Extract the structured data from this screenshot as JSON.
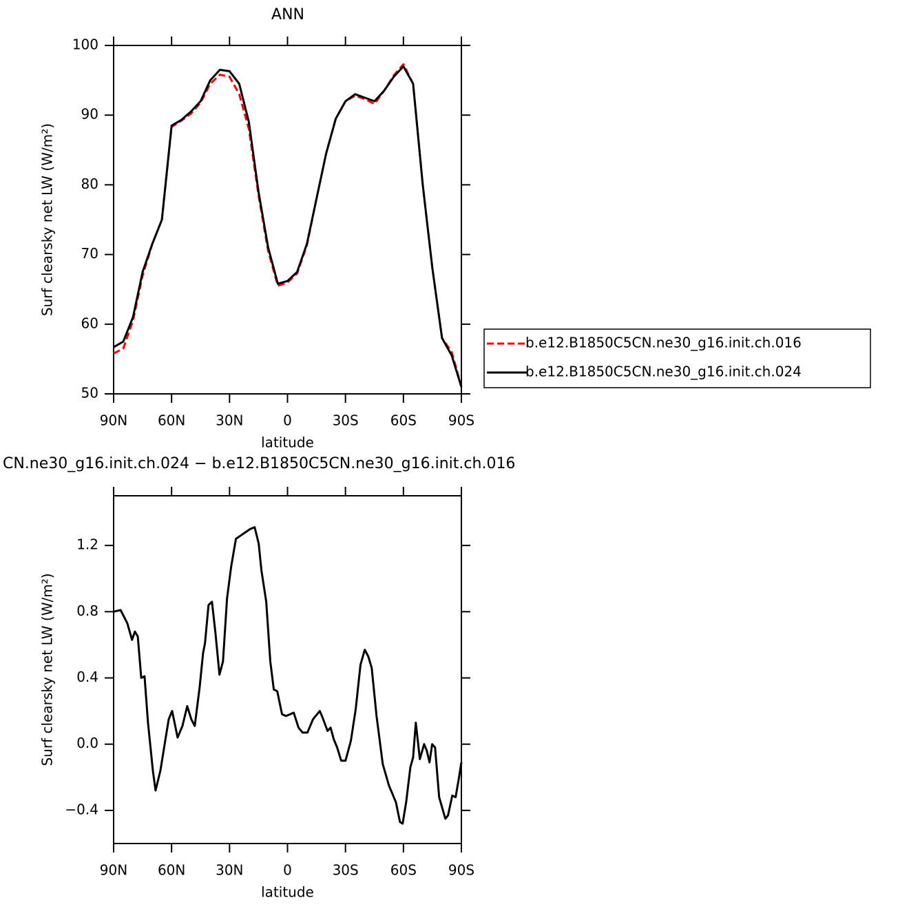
{
  "chart_data": [
    {
      "type": "line",
      "title": "ANN",
      "ylabel": "Surf clearsky net LW (W/m²)",
      "xlabel": "latitude",
      "x": [
        90,
        85,
        80,
        75,
        70,
        65,
        60,
        55,
        50,
        45,
        40,
        35,
        30,
        25,
        20,
        15,
        10,
        5,
        0,
        -5,
        -10,
        -15,
        -20,
        -25,
        -30,
        -35,
        -40,
        -45,
        -50,
        -55,
        -60,
        -65,
        -70,
        -75,
        -80,
        -85,
        -90
      ],
      "series": [
        {
          "name": "b.e12.B1850C5CN.ne30_g16.init.ch.016",
          "color": "#ff0000",
          "line_style": "dashed",
          "values": [
            55.8,
            56.5,
            60.5,
            67,
            71.5,
            75,
            88.3,
            89.2,
            90.2,
            91.8,
            94.5,
            95.8,
            95.5,
            93,
            88,
            78.5,
            70.5,
            65.5,
            66,
            67.3,
            71.3,
            78,
            84.5,
            89.5,
            92,
            92.8,
            92.3,
            91.6,
            93.5,
            95.7,
            97.3,
            94.5,
            80,
            68,
            58,
            56,
            51
          ]
        },
        {
          "name": "b.e12.B1850C5CN.ne30_g16.init.ch.024",
          "color": "#000000",
          "line_style": "solid",
          "values": [
            56.7,
            57.5,
            61,
            67.5,
            71.5,
            75,
            88.5,
            89.3,
            90.5,
            92,
            95,
            96.5,
            96.3,
            94.5,
            89,
            79,
            71,
            65.8,
            66.2,
            67.5,
            71.5,
            78,
            84.5,
            89.5,
            92,
            93,
            92.5,
            92,
            93.5,
            95.5,
            97,
            94.5,
            80,
            68,
            58,
            55.5,
            51
          ]
        }
      ],
      "xlim": [
        90,
        -90
      ],
      "xticks": [
        {
          "value": 90,
          "label": "90N"
        },
        {
          "value": 60,
          "label": "60N"
        },
        {
          "value": 30,
          "label": "30N"
        },
        0,
        {
          "value": -30,
          "label": "30S"
        },
        {
          "value": -60,
          "label": "60S"
        },
        {
          "value": -90,
          "label": "90S"
        }
      ],
      "ylim": [
        50,
        100
      ],
      "yticks": [
        50,
        60,
        70,
        80,
        90,
        100
      ],
      "grid": false,
      "legend": "outside-right"
    },
    {
      "type": "line",
      "title": "CN.ne30_g16.init.ch.024 − b.e12.B1850C5CN.ne30_g16.init.ch.016",
      "ylabel": "Surf clearsky net LW (W/m²)",
      "xlabel": "latitude",
      "x": [
        90,
        86.4,
        82.9,
        80.5,
        79,
        77.5,
        75.7,
        74,
        72.2,
        69.7,
        68.3,
        65.8,
        63.3,
        61.5,
        59.7,
        56.9,
        54.4,
        51.9,
        49.8,
        48,
        45.5,
        43.7,
        42.7,
        40.9,
        39.1,
        37.3,
        35.2,
        33.4,
        31.3,
        29.2,
        26.7,
        24.2,
        21.7,
        19.2,
        17,
        14.9,
        13.5,
        11,
        8.9,
        7.1,
        5.3,
        2.8,
        0.7,
        -3.2,
        -5.7,
        -7.8,
        -10.3,
        -13.2,
        -16.7,
        -18.5,
        -20.7,
        -22.3,
        -23.9,
        -25.7,
        -27.8,
        -30,
        -32.8,
        -35.3,
        -37.8,
        -40,
        -41.8,
        -43.6,
        -46.1,
        -49.3,
        -52.5,
        -56.1,
        -58.2,
        -59.6,
        -61.4,
        -63.6,
        -65,
        -66.4,
        -68.5,
        -70.7,
        -72.1,
        -73.5,
        -74.9,
        -76.4,
        -78.5,
        -81.7,
        -83.1,
        -85.3,
        -87,
        -88.5,
        -90
      ],
      "color": "#000000",
      "values": [
        0.8,
        0.81,
        0.73,
        0.63,
        0.68,
        0.65,
        0.4,
        0.41,
        0.13,
        -0.16,
        -0.28,
        -0.16,
        0.02,
        0.15,
        0.2,
        0.04,
        0.11,
        0.23,
        0.15,
        0.11,
        0.34,
        0.55,
        0.61,
        0.84,
        0.86,
        0.67,
        0.42,
        0.5,
        0.88,
        1.07,
        1.24,
        1.26,
        1.28,
        1.3,
        1.31,
        1.21,
        1.05,
        0.86,
        0.5,
        0.33,
        0.32,
        0.18,
        0.17,
        0.19,
        0.1,
        0.07,
        0.07,
        0.15,
        0.2,
        0.15,
        0.08,
        0.1,
        0.03,
        -0.02,
        -0.1,
        -0.1,
        0.02,
        0.21,
        0.48,
        0.57,
        0.53,
        0.46,
        0.17,
        -0.12,
        -0.25,
        -0.35,
        -0.47,
        -0.48,
        -0.35,
        -0.14,
        -0.08,
        0.13,
        -0.09,
        0,
        -0.04,
        -0.11,
        0,
        -0.02,
        -0.32,
        -0.45,
        -0.43,
        -0.31,
        -0.32,
        -0.22,
        -0.11
      ],
      "xlim": [
        90,
        -90
      ],
      "xticks": [
        {
          "value": 90,
          "label": "90N"
        },
        {
          "value": 60,
          "label": "60N"
        },
        {
          "value": 30,
          "label": "30N"
        },
        0,
        {
          "value": -30,
          "label": "30S"
        },
        {
          "value": -60,
          "label": "60S"
        },
        {
          "value": -90,
          "label": "90S"
        }
      ],
      "ylim": [
        -0.6,
        1.5
      ],
      "yticks": [
        {
          "value": -0.4,
          "label": "−0.4"
        },
        {
          "value": 0,
          "label": "0.0"
        },
        0.4,
        0.8,
        1.2
      ],
      "grid": false
    }
  ]
}
